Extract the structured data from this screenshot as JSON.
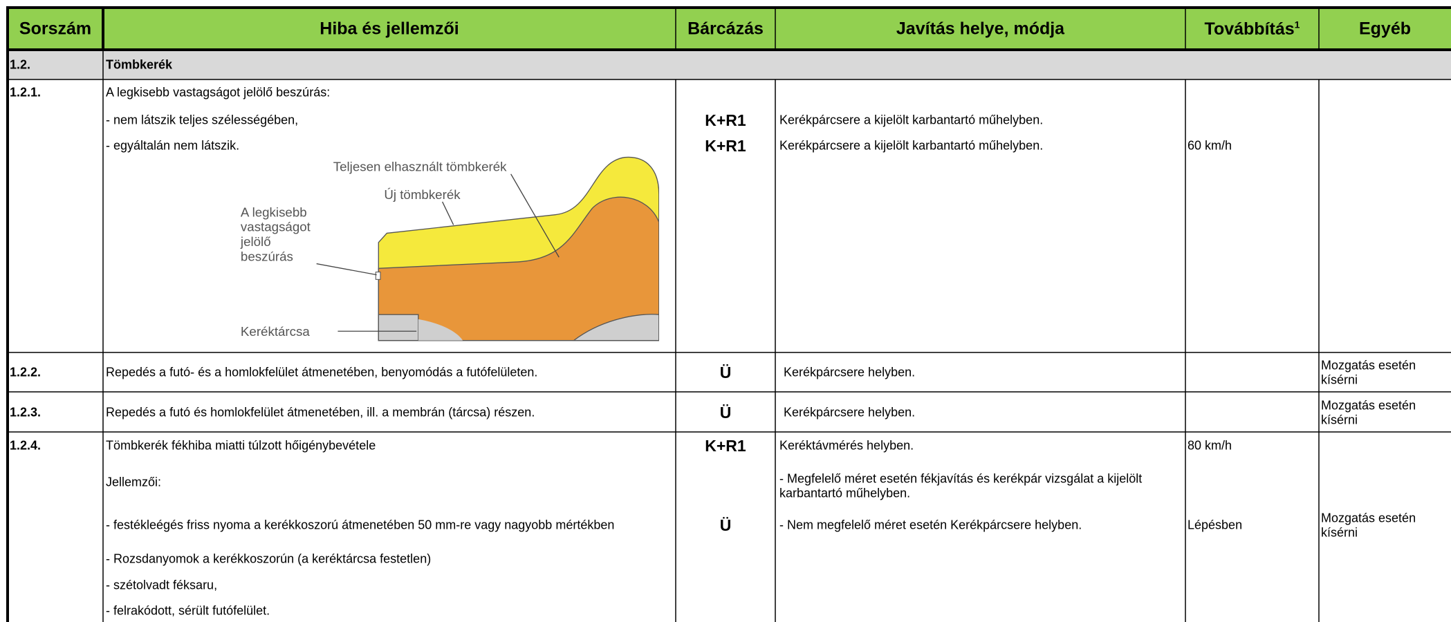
{
  "header": {
    "columns": [
      "Sorszám",
      "Hiba és jellemzői",
      "Bárcázás",
      "Javítás helye, módja",
      "Továbbítás",
      "Egyéb"
    ],
    "footnote_mark": "1"
  },
  "section": {
    "number": "1.2.",
    "title": "Tömbkerék"
  },
  "rows": [
    {
      "number": "1.2.1.",
      "description": [
        "A legkisebb vastagságot jelölő beszúrás:",
        "- nem látszik teljes szélességében,",
        "- egyáltalán nem látszik."
      ],
      "tagging": [
        "K+R1",
        "K+R1"
      ],
      "repair": [
        "Kerékpárcsere a kijelölt karbantartó műhelyben.",
        "Kerékpárcsere a kijelölt karbantartó műhelyben."
      ],
      "forwarding": [
        "60 km/h"
      ],
      "diagram": {
        "labels": [
          "Teljesen elhasznált tömbkerék",
          "Új tömbkerék",
          "Keréktárcsa"
        ],
        "groove_label": [
          "A legkisebb",
          "vastagságot",
          "jelölő",
          "beszúrás"
        ]
      }
    },
    {
      "number": "1.2.2.",
      "description": [
        "Repedés a futó- és a homlokfelület átmenetében, benyomódás a futófelületen."
      ],
      "tagging": [
        "Ü"
      ],
      "repair": [
        "Kerékpárcsere helyben."
      ],
      "other": [
        "Mozgatás esetén kísérni"
      ]
    },
    {
      "number": "1.2.3.",
      "description": [
        "Repedés a futó és homlokfelület átmenetében, ill. a membrán (tárcsa) részen."
      ],
      "tagging": [
        "Ü"
      ],
      "repair": [
        "Kerékpárcsere helyben."
      ],
      "other": [
        "Mozgatás esetén kísérni"
      ]
    },
    {
      "number": "1.2.4.",
      "description": [
        "Tömbkerék fékhiba miatti túlzott hőigénybevétele",
        "Jellemzői:",
        "- festékleégés friss nyoma a kerékkoszorú átmenetében 50 mm-re vagy nagyobb mértékben",
        "- Rozsdanyomok a kerékkoszorún (a keréktárcsa festetlen)",
        "- szétolvadt féksaru,",
        "- felrakódott, sérült futófelület."
      ],
      "tagging": [
        "K+R1",
        "Ü"
      ],
      "repair": [
        "Keréktávmérés helyben.",
        "- Megfelelő méret esetén fékjavítás  és kerékpár vizsgálat a kijelölt karbantartó műhelyben.",
        "- Nem megfelelő méret esetén Kerékpárcsere helyben."
      ],
      "forwarding": [
        "80 km/h",
        "Lépésben"
      ],
      "other": [
        "Mozgatás esetén kísérni"
      ]
    }
  ]
}
